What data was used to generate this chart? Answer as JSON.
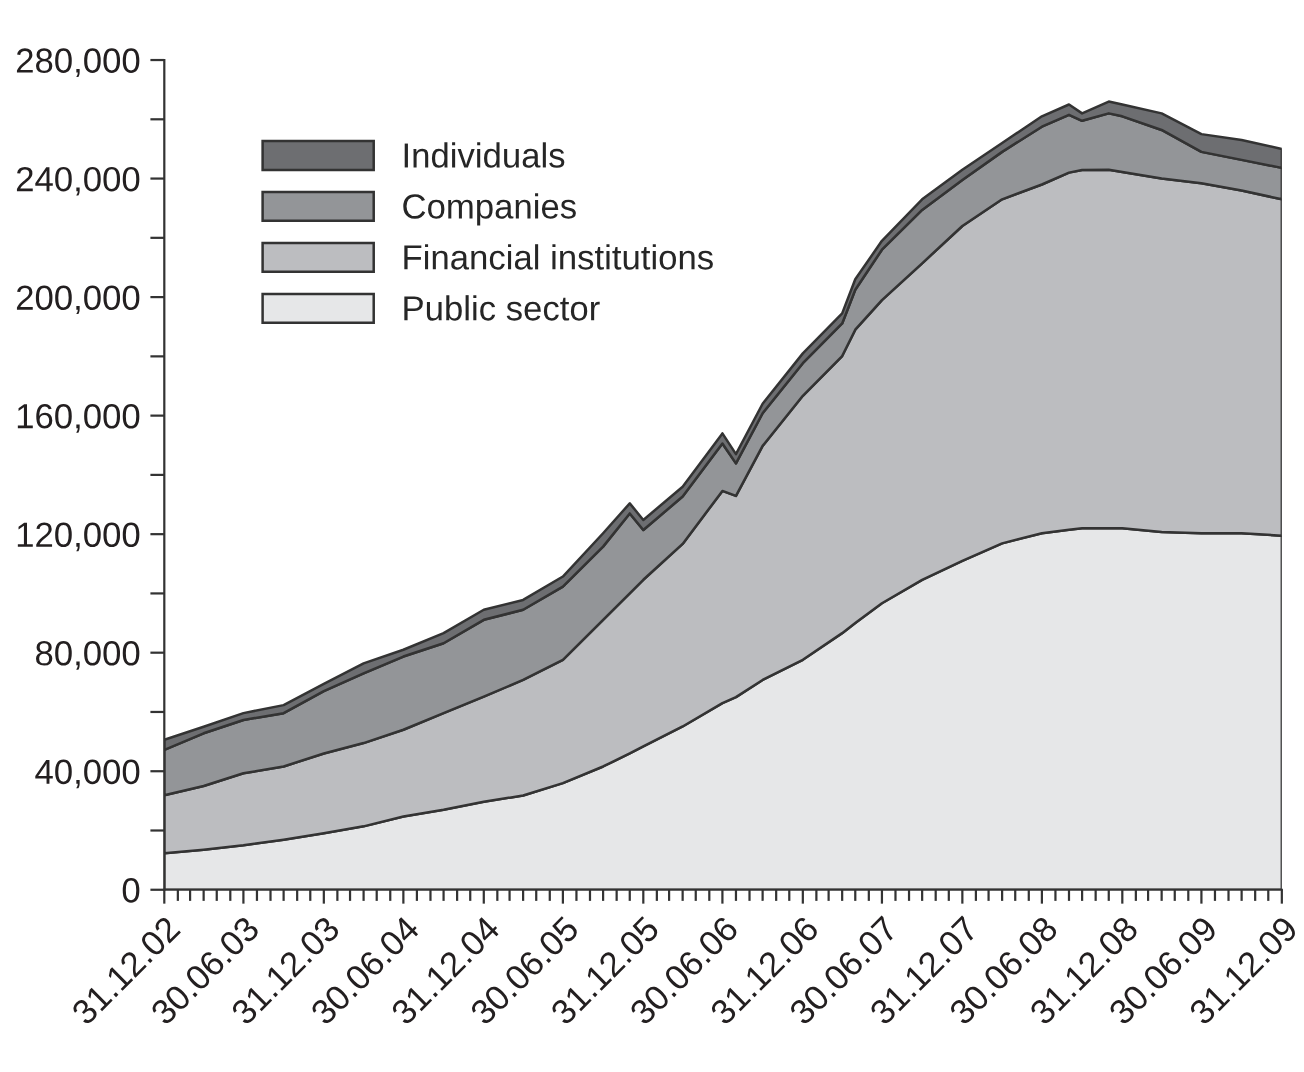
{
  "chart_data": {
    "type": "area",
    "stacked": true,
    "legend": "top left",
    "grid": false,
    "x": [
      "2002-12-31",
      "2003-03-31",
      "2003-06-30",
      "2003-09-30",
      "2003-12-31",
      "2004-03-31",
      "2004-06-30",
      "2004-09-30",
      "2004-12-31",
      "2005-03-31",
      "2005-06-30",
      "2005-09-30",
      "2005-11-30",
      "2005-12-31",
      "2006-03-31",
      "2006-06-30",
      "2006-07-31",
      "2006-09-30",
      "2006-12-31",
      "2007-03-31",
      "2007-04-30",
      "2007-06-30",
      "2007-09-30",
      "2007-12-31",
      "2008-03-31",
      "2008-06-30",
      "2008-08-31",
      "2008-09-30",
      "2008-11-30",
      "2008-12-31",
      "2009-03-31",
      "2009-06-30",
      "2009-09-30",
      "2009-12-31"
    ],
    "series": [
      {
        "name": "Public sector",
        "color": "#e6e7e8",
        "values": [
          12300,
          13500,
          15000,
          16900,
          19100,
          21400,
          24700,
          27000,
          29700,
          31800,
          36000,
          41600,
          46000,
          48400,
          55100,
          63000,
          65000,
          70800,
          77600,
          86600,
          90000,
          96700,
          104600,
          111000,
          116900,
          120300,
          121500,
          122000,
          122000,
          122000,
          120700,
          120300,
          120300,
          119500
        ]
      },
      {
        "name": "Financial institutions",
        "color": "#bcbdc0",
        "values": [
          19600,
          21500,
          24300,
          24700,
          26900,
          28100,
          29300,
          32600,
          35500,
          39000,
          41600,
          49500,
          54000,
          56200,
          61600,
          71600,
          67900,
          79000,
          89100,
          93500,
          99000,
          102300,
          106800,
          113000,
          116100,
          117700,
          120500,
          120900,
          121000,
          120200,
          119300,
          118100,
          115700,
          113500
        ]
      },
      {
        "name": "Companies",
        "color": "#939598",
        "values": [
          15300,
          17800,
          18000,
          18000,
          21000,
          23500,
          24700,
          23600,
          25900,
          23700,
          24700,
          24700,
          27000,
          16800,
          16000,
          16000,
          11000,
          11000,
          11000,
          11000,
          13500,
          17000,
          18000,
          15500,
          16000,
          19500,
          19500,
          16600,
          19000,
          18800,
          16400,
          10600,
          10300,
          10600
        ]
      },
      {
        "name": "Individuals",
        "color": "#6d6e71",
        "values": [
          3400,
          2200,
          2300,
          2700,
          2500,
          3400,
          2300,
          3400,
          3400,
          3300,
          3400,
          4500,
          3400,
          3400,
          3300,
          3400,
          3100,
          3200,
          3300,
          3400,
          3500,
          3000,
          3600,
          3500,
          3000,
          3500,
          3500,
          2500,
          4000,
          4000,
          5600,
          6000,
          6700,
          6400
        ]
      }
    ],
    "ylim": [
      0,
      280000
    ],
    "yticks": [
      {
        "value": 0,
        "label": "0"
      },
      {
        "value": 20000,
        "label": null
      },
      {
        "value": 40000,
        "label": "40,000"
      },
      {
        "value": 60000,
        "label": null
      },
      {
        "value": 80000,
        "label": "80,000"
      },
      {
        "value": 100000,
        "label": null
      },
      {
        "value": 120000,
        "label": "120,000"
      },
      {
        "value": 140000,
        "label": null
      },
      {
        "value": 160000,
        "label": "160,000"
      },
      {
        "value": 180000,
        "label": null
      },
      {
        "value": 200000,
        "label": "200,000"
      },
      {
        "value": 220000,
        "label": null
      },
      {
        "value": 240000,
        "label": "240,000"
      },
      {
        "value": 260000,
        "label": null
      },
      {
        "value": 280000,
        "label": "280,000"
      }
    ],
    "xlim": [
      "2002-12-31",
      "2009-12-31"
    ],
    "xticks": [
      {
        "value": "2002-12-31",
        "label": "31.12.02"
      },
      {
        "value": "2003-06-30",
        "label": "30.06.03"
      },
      {
        "value": "2003-12-31",
        "label": "31.12.03"
      },
      {
        "value": "2004-06-30",
        "label": "30.06.04"
      },
      {
        "value": "2004-12-31",
        "label": "31.12.04"
      },
      {
        "value": "2005-06-30",
        "label": "30.06.05"
      },
      {
        "value": "2005-12-31",
        "label": "31.12.05"
      },
      {
        "value": "2006-06-30",
        "label": "30.06.06"
      },
      {
        "value": "2006-12-31",
        "label": "31.12.06"
      },
      {
        "value": "2007-06-30",
        "label": "30.06.07"
      },
      {
        "value": "2007-12-31",
        "label": "31.12.07"
      },
      {
        "value": "2008-06-30",
        "label": "30.06.08"
      },
      {
        "value": "2008-12-31",
        "label": "31.12.08"
      },
      {
        "value": "2009-06-30",
        "label": "30.06.09"
      },
      {
        "value": "2009-12-31",
        "label": "31.12.09"
      }
    ]
  }
}
